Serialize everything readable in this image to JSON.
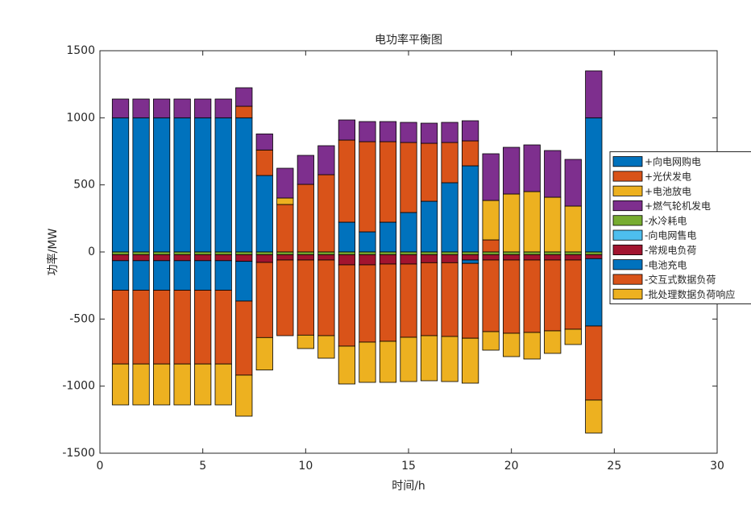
{
  "chart_data": {
    "type": "bar",
    "stacked": true,
    "title": "电功率平衡图",
    "x_label": "时间/h",
    "y_label": "功率/MW",
    "x": [
      1,
      2,
      3,
      4,
      5,
      6,
      7,
      8,
      9,
      10,
      11,
      12,
      13,
      14,
      15,
      16,
      17,
      18,
      19,
      20,
      21,
      22,
      23,
      24
    ],
    "xlim": [
      0,
      30
    ],
    "xticks": [
      0,
      5,
      10,
      15,
      20,
      25,
      30
    ],
    "ylim": [
      -1500,
      1500
    ],
    "yticks": [
      -1500,
      -1000,
      -500,
      0,
      500,
      1000,
      1500
    ],
    "grid": false,
    "legend_location": "east",
    "series": [
      {
        "name": "+向电网购电",
        "color": "#0072BD",
        "values": [
          1000,
          1000,
          1000,
          1000,
          1000,
          1000,
          1000,
          570,
          0,
          0,
          0,
          222,
          150,
          222,
          294,
          378,
          516,
          642,
          0,
          0,
          0,
          0,
          0,
          1000
        ]
      },
      {
        "name": "+光伏发电",
        "color": "#D95319",
        "values": [
          0,
          0,
          0,
          0,
          0,
          0,
          86,
          190,
          354,
          504,
          576,
          612,
          672,
          600,
          522,
          432,
          300,
          186,
          90,
          0,
          0,
          0,
          0,
          0
        ]
      },
      {
        "name": "+电池放电",
        "color": "#EDB120",
        "values": [
          0,
          0,
          0,
          0,
          0,
          0,
          0,
          0,
          48,
          0,
          0,
          0,
          0,
          0,
          0,
          0,
          0,
          0,
          294,
          432,
          450,
          408,
          342,
          0
        ]
      },
      {
        "name": "+燃气轮机发电",
        "color": "#7E2F8E",
        "values": [
          140,
          140,
          140,
          140,
          140,
          140,
          138,
          120,
          222,
          216,
          216,
          150,
          150,
          150,
          150,
          150,
          150,
          150,
          348,
          348,
          348,
          348,
          348,
          350
        ]
      },
      {
        "name": "-水冷耗电",
        "color": "#77AC30",
        "values": [
          -20,
          -20,
          -20,
          -20,
          -20,
          -20,
          -20,
          -20,
          -20,
          -20,
          -20,
          -20,
          -20,
          -20,
          -20,
          -20,
          -20,
          -20,
          -20,
          -20,
          -20,
          -20,
          -20,
          -20
        ]
      },
      {
        "name": "-向电网售电",
        "color": "#4DBEEE",
        "values": [
          0,
          0,
          0,
          0,
          0,
          0,
          0,
          0,
          0,
          0,
          0,
          0,
          0,
          0,
          0,
          0,
          0,
          0,
          0,
          0,
          0,
          0,
          0,
          0
        ]
      },
      {
        "name": "-常规电负荷",
        "color": "#A2142F",
        "values": [
          -45,
          -45,
          -45,
          -45,
          -45,
          -45,
          -50,
          -58,
          -40,
          -40,
          -40,
          -76,
          -76,
          -70,
          -70,
          -60,
          -60,
          -40,
          -40,
          -40,
          -40,
          -40,
          -40,
          -30
        ]
      },
      {
        "name": "-电池充电",
        "color": "#0072BD",
        "values": [
          -220,
          -220,
          -220,
          -220,
          -220,
          -220,
          -296,
          0,
          0,
          0,
          0,
          0,
          0,
          0,
          0,
          0,
          0,
          -25,
          0,
          0,
          0,
          0,
          0,
          -502
        ]
      },
      {
        "name": "-交互式数据负荷",
        "color": "#D95319",
        "values": [
          -550,
          -550,
          -550,
          -550,
          -550,
          -550,
          -552,
          -560,
          -564,
          -560,
          -564,
          -606,
          -576,
          -576,
          -546,
          -544,
          -550,
          -558,
          -534,
          -546,
          -540,
          -528,
          -516,
          -552
        ]
      },
      {
        "name": "-批处理数据负荷响应",
        "color": "#EDB120",
        "values": [
          -305,
          -305,
          -305,
          -305,
          -305,
          -305,
          -306,
          -242,
          0,
          -100,
          -168,
          -282,
          -300,
          -306,
          -330,
          -336,
          -336,
          -335,
          -138,
          -174,
          -198,
          -168,
          -114,
          -246
        ]
      }
    ]
  }
}
